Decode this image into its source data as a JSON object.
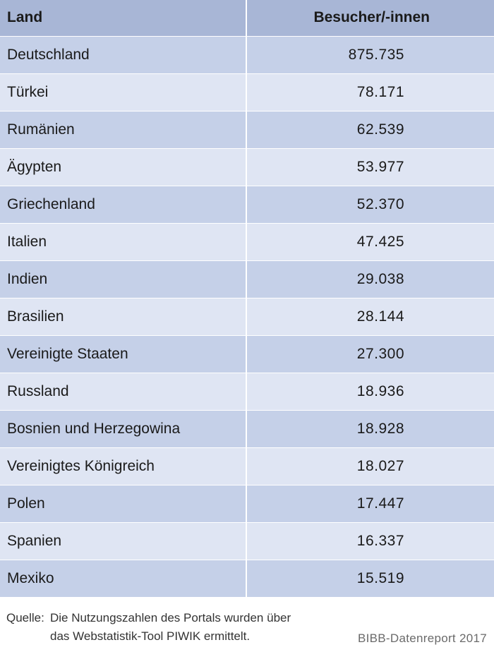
{
  "table": {
    "headers": {
      "land": "Land",
      "besucher": "Besucher/-innen"
    },
    "rows": [
      {
        "land": "Deutschland",
        "besucher": "875.735"
      },
      {
        "land": "Türkei",
        "besucher": "78.171"
      },
      {
        "land": "Rumänien",
        "besucher": "62.539"
      },
      {
        "land": "Ägypten",
        "besucher": "53.977"
      },
      {
        "land": "Griechenland",
        "besucher": "52.370"
      },
      {
        "land": "Italien",
        "besucher": "47.425"
      },
      {
        "land": "Indien",
        "besucher": "29.038"
      },
      {
        "land": "Brasilien",
        "besucher": "28.144"
      },
      {
        "land": "Vereinigte Staaten",
        "besucher": "27.300"
      },
      {
        "land": "Russland",
        "besucher": "18.936"
      },
      {
        "land": "Bosnien und Herzegowina",
        "besucher": "18.928"
      },
      {
        "land": "Vereinigtes Königreich",
        "besucher": "18.027"
      },
      {
        "land": "Polen",
        "besucher": "17.447"
      },
      {
        "land": "Spanien",
        "besucher": "16.337"
      },
      {
        "land": "Mexiko",
        "besucher": "15.519"
      }
    ]
  },
  "footer": {
    "source_label": "Quelle:",
    "source_line1": "Die Nutzungszahlen des Portals wurden über",
    "source_line2": "das Webstatistik-Tool PIWIK ermittelt.",
    "credit": "BIBB-Datenreport 2017"
  },
  "colors": {
    "header_bg": "#a8b6d6",
    "row_dark": "#c5d0e8",
    "row_light": "#dfe5f3"
  }
}
